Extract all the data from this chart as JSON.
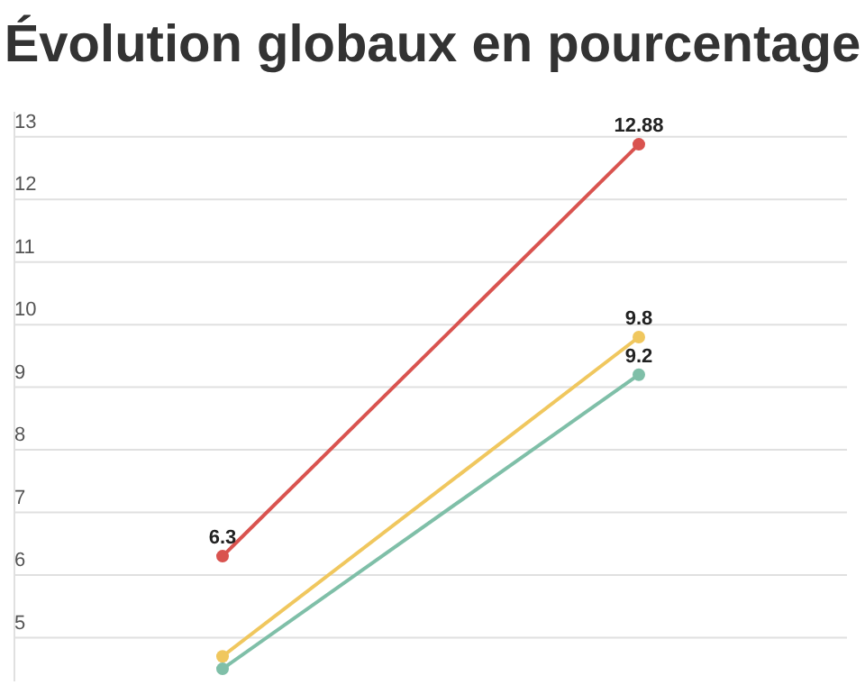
{
  "chart_data": {
    "type": "line",
    "title": "Évolution globaux en pourcentage",
    "categories": [
      null,
      null
    ],
    "series": [
      {
        "color": "#d9534f",
        "values": [
          6.3,
          12.88
        ],
        "value_labels": [
          "6.3",
          "12.88"
        ]
      },
      {
        "color": "#f0c75e",
        "values": [
          4.7,
          9.8
        ],
        "value_labels": [
          null,
          "9.8"
        ]
      },
      {
        "color": "#7fbfa8",
        "values": [
          4.5,
          9.2
        ],
        "value_labels": [
          null,
          "9.2"
        ]
      }
    ],
    "ylim": [
      4.3,
      13.4
    ],
    "yticks": [
      5,
      6,
      7,
      8,
      9,
      10,
      11,
      12,
      13
    ],
    "grid": "y",
    "marker": "circle",
    "line_style": "solid"
  }
}
